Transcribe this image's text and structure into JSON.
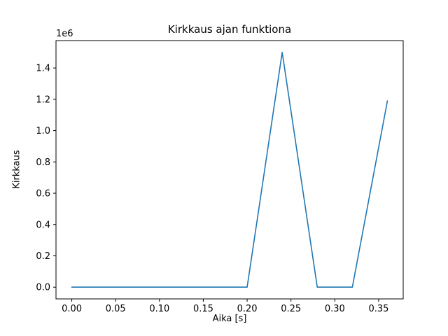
{
  "chart_data": {
    "type": "line",
    "title": "Kirkkaus ajan funktiona",
    "xlabel": "Aika [s]",
    "ylabel": "Kirkkaus",
    "y_offset_label": "1e6",
    "x": [
      0.0,
      0.04,
      0.08,
      0.12,
      0.16,
      0.2,
      0.24,
      0.28,
      0.32,
      0.36
    ],
    "values": [
      0,
      0,
      0,
      0,
      0,
      0,
      1500000,
      0,
      0,
      1190000
    ],
    "xlim": [
      -0.018,
      0.378
    ],
    "ylim": [
      -75000,
      1575000
    ],
    "xticks": [
      0.0,
      0.05,
      0.1,
      0.15,
      0.2,
      0.25,
      0.3,
      0.35
    ],
    "xtick_labels": [
      "0.00",
      "0.05",
      "0.10",
      "0.15",
      "0.20",
      "0.25",
      "0.30",
      "0.35"
    ],
    "yticks": [
      0,
      200000,
      400000,
      600000,
      800000,
      1000000,
      1200000,
      1400000
    ],
    "ytick_labels": [
      "0.0",
      "0.2",
      "0.4",
      "0.6",
      "0.8",
      "1.0",
      "1.2",
      "1.4"
    ],
    "line_color": "#1f77b4",
    "spine_color": "#000000",
    "grid": false,
    "legend_position": "none"
  }
}
